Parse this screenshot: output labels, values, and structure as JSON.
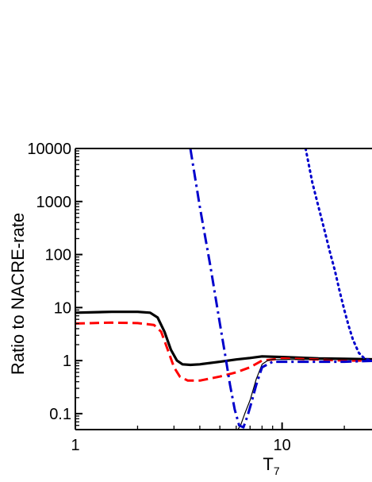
{
  "chart_data": {
    "type": "line",
    "title": "",
    "xlabel": "T",
    "xlabel_subscript": "7",
    "ylabel": "Ratio to NACRE-rate",
    "x_scale": "log",
    "y_scale": "log",
    "xlim": [
      1,
      30
    ],
    "ylim": [
      0.05,
      10000
    ],
    "x_ticks": [
      1,
      10
    ],
    "x_tick_labels": [
      "1",
      "10"
    ],
    "y_ticks": [
      0.1,
      1,
      10,
      100,
      1000,
      10000
    ],
    "y_tick_labels": [
      "0.1",
      "1",
      "10",
      "100",
      "1000",
      "10000"
    ],
    "grid": false,
    "legend": "none",
    "series": [
      {
        "style": "solid-thick",
        "color": "#000000",
        "x": [
          1.0,
          1.5,
          2.0,
          2.3,
          2.5,
          2.7,
          2.9,
          3.1,
          3.3,
          3.6,
          4.0,
          5.0,
          6.0,
          7.0,
          8.0,
          10.0,
          15.0,
          20.0,
          30.0
        ],
        "y": [
          8.0,
          8.3,
          8.3,
          8.0,
          6.5,
          3.5,
          1.6,
          1.0,
          0.85,
          0.83,
          0.85,
          0.95,
          1.05,
          1.12,
          1.2,
          1.17,
          1.1,
          1.08,
          1.05
        ]
      },
      {
        "style": "dashed",
        "color": "#ff0000",
        "x": [
          1.0,
          1.5,
          2.0,
          2.4,
          2.6,
          2.8,
          3.0,
          3.2,
          3.5,
          4.0,
          5.0,
          6.0,
          7.0,
          8.0,
          10.0,
          15.0,
          20.0,
          30.0
        ],
        "y": [
          5.0,
          5.2,
          5.1,
          4.7,
          3.5,
          1.6,
          0.75,
          0.5,
          0.42,
          0.42,
          0.5,
          0.6,
          0.75,
          1.0,
          1.1,
          1.05,
          1.0,
          1.0
        ]
      },
      {
        "style": "solid-thin",
        "color": "#000000",
        "x": [
          5.5,
          6.0,
          6.3,
          6.6,
          7.0,
          7.5,
          8.0,
          8.5,
          9.0,
          10.0,
          15.0,
          20.0,
          30.0
        ],
        "y": [
          0.03,
          0.045,
          0.06,
          0.1,
          0.18,
          0.45,
          0.85,
          1.0,
          1.05,
          1.05,
          1.05,
          1.05,
          1.05
        ]
      },
      {
        "style": "dash-dot",
        "color": "#0000cc",
        "x": [
          3.6,
          4.0,
          4.5,
          5.0,
          5.3,
          5.6,
          5.9,
          6.2,
          6.5,
          6.8,
          7.1,
          7.5,
          8.0,
          9.0,
          10.0,
          15.0,
          20.0,
          30.0
        ],
        "y": [
          10000,
          800,
          60,
          5.0,
          1.3,
          0.35,
          0.12,
          0.06,
          0.055,
          0.09,
          0.16,
          0.35,
          0.75,
          0.95,
          0.95,
          0.95,
          0.95,
          1.0
        ]
      },
      {
        "style": "dotted",
        "color": "#0000cc",
        "x": [
          13.0,
          14.0,
          15.0,
          16.0,
          17.0,
          18.0,
          19.0,
          20.0,
          21.0,
          22.0,
          23.5,
          25.0,
          27.0,
          30.0
        ],
        "y": [
          10000,
          2300,
          800,
          300,
          115,
          50,
          20,
          9,
          4.5,
          2.5,
          1.4,
          1.1,
          1.0,
          1.0
        ]
      }
    ]
  }
}
